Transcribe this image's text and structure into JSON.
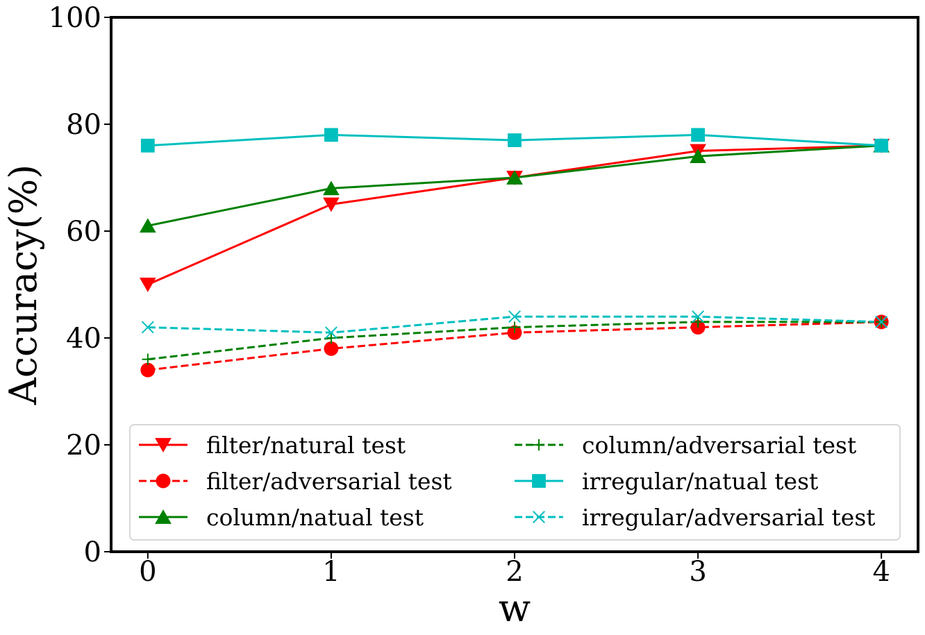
{
  "chart_data": {
    "type": "line",
    "xlabel": "w",
    "ylabel": "Accuracy(%)",
    "xlim": [
      -0.2,
      4.2
    ],
    "ylim": [
      0,
      100
    ],
    "x": [
      0,
      1,
      2,
      3,
      4
    ],
    "xticks": [
      "0",
      "1",
      "2",
      "3",
      "4"
    ],
    "yticks": [
      "0",
      "20",
      "40",
      "60",
      "80",
      "100"
    ],
    "grid": false,
    "legend_position": "bottom",
    "series": [
      {
        "name": "filter/natural test",
        "values": [
          50,
          65,
          70,
          75,
          76
        ],
        "color": "#ff0000",
        "linestyle": "solid",
        "marker": "triangle-down"
      },
      {
        "name": "filter/adversarial test",
        "values": [
          34,
          38,
          41,
          42,
          43
        ],
        "color": "#ff0000",
        "linestyle": "dashed",
        "marker": "circle"
      },
      {
        "name": "column/natual test",
        "values": [
          61,
          68,
          70,
          74,
          76
        ],
        "color": "#008000",
        "linestyle": "solid",
        "marker": "triangle-up"
      },
      {
        "name": "column/adversarial test",
        "values": [
          36,
          40,
          42,
          43,
          43
        ],
        "color": "#008000",
        "linestyle": "dashed",
        "marker": "plus"
      },
      {
        "name": "irregular/natual test",
        "values": [
          76,
          78,
          77,
          78,
          76
        ],
        "color": "#00bfbf",
        "linestyle": "solid",
        "marker": "square"
      },
      {
        "name": "irregular/adversarial test",
        "values": [
          42,
          41,
          44,
          44,
          43
        ],
        "color": "#00bfbf",
        "linestyle": "dashed",
        "marker": "x"
      }
    ]
  }
}
